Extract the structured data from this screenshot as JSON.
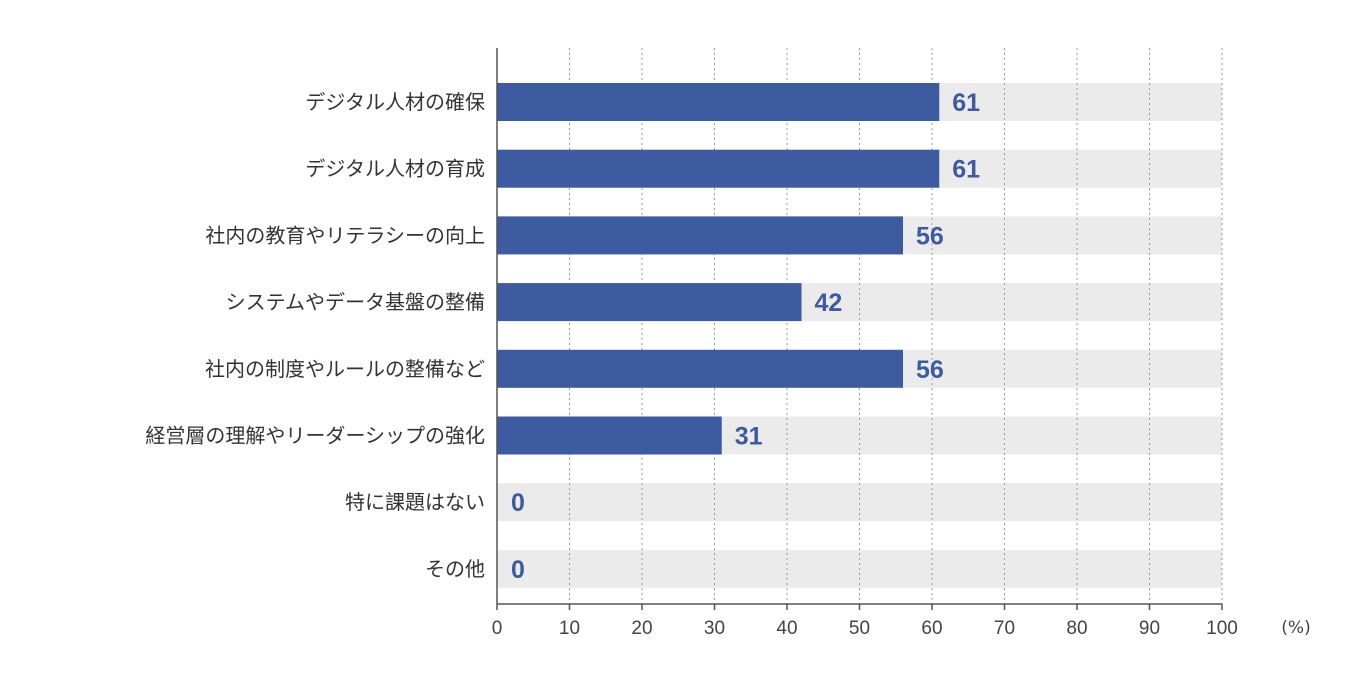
{
  "chart_data": {
    "type": "bar",
    "orientation": "horizontal",
    "categories": [
      "デジタル人材の確保",
      "デジタル人材の育成",
      "社内の教育やリテラシーの向上",
      "システムやデータ基盤の整備",
      "社内の制度やルールの整備など",
      "経営層の理解やリーダーシップの強化",
      "特に課題はない",
      "その他"
    ],
    "values": [
      61,
      61,
      56,
      42,
      56,
      31,
      0,
      0
    ],
    "value_labels": [
      "61",
      "61",
      "56",
      "42",
      "56",
      "31",
      "0",
      "0"
    ],
    "xlim": [
      0,
      100
    ],
    "xticks": [
      0,
      10,
      20,
      30,
      40,
      50,
      60,
      70,
      80,
      90,
      100
    ],
    "xtick_labels": [
      "0",
      "10",
      "20",
      "30",
      "40",
      "50",
      "60",
      "70",
      "80",
      "90",
      "100"
    ],
    "unit": "(%)",
    "title": "",
    "xlabel": "",
    "ylabel": "",
    "grid": true,
    "grid_style": "dotted-vertical",
    "colors": {
      "bar": "#3d5ba0",
      "track": "#ebebeb",
      "value_text": "#3d5ba0",
      "axis": "#555555",
      "grid": "#999999"
    }
  }
}
